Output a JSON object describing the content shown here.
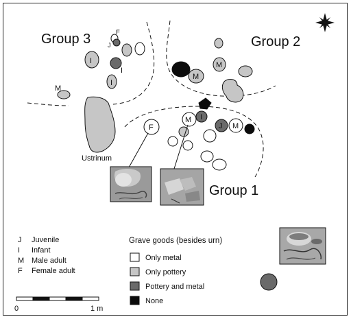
{
  "groups": {
    "group1": "Group 1",
    "group2": "Group 2",
    "group3": "Group 3"
  },
  "ustrinum_label": "Ustrinum",
  "grave_letters": {
    "J": "J",
    "I": "I",
    "M": "M",
    "F": "F"
  },
  "age_sex_legend": [
    {
      "code": "J",
      "label": "Juvenile"
    },
    {
      "code": "I",
      "label": "Infant"
    },
    {
      "code": "M",
      "label": "Male adult"
    },
    {
      "code": "F",
      "label": "Female adult"
    }
  ],
  "grave_goods_legend": {
    "title": "Grave goods (besides urn)",
    "items": [
      {
        "label": "Only metal",
        "color": "#ffffff"
      },
      {
        "label": "Only pottery",
        "color": "#c6c6c6"
      },
      {
        "label": "Pottery and metal",
        "color": "#6a6a6a"
      },
      {
        "label": "None",
        "color": "#0c0c0c"
      }
    ]
  },
  "scale": {
    "start": "0",
    "end": "1 m"
  },
  "north_icon": "compass-rose-icon"
}
